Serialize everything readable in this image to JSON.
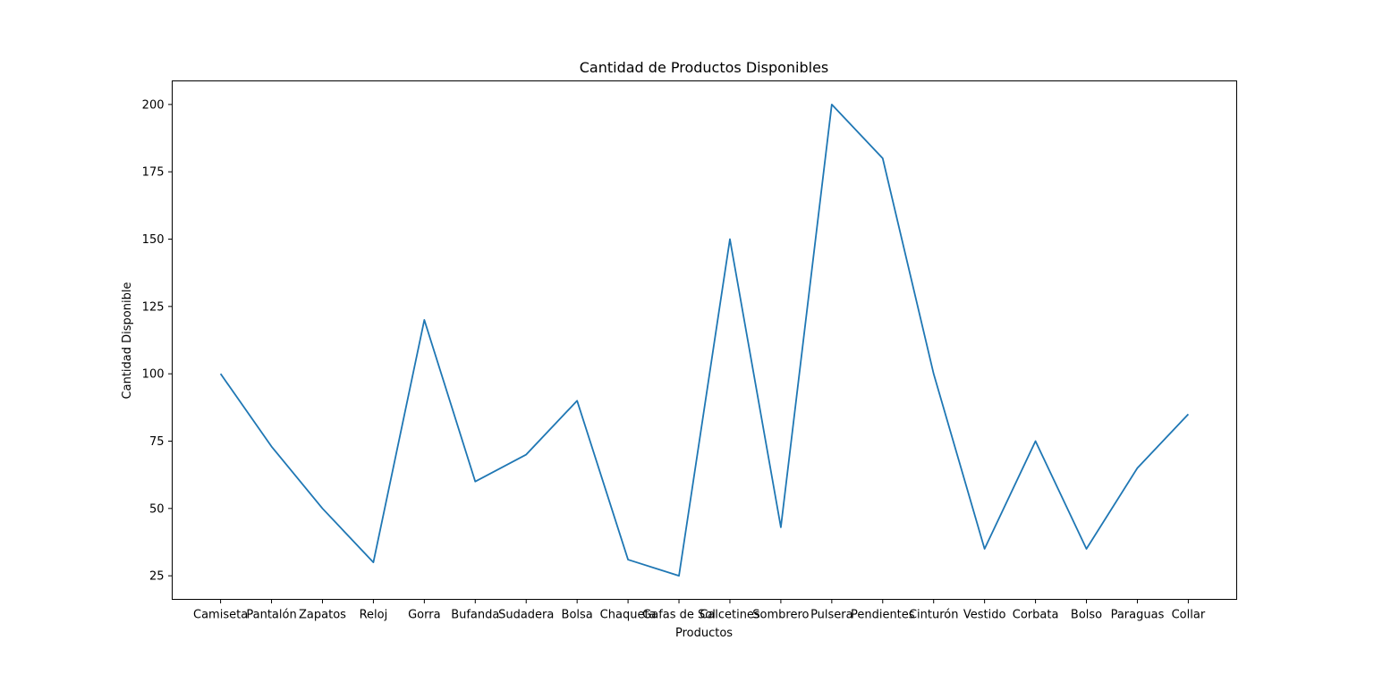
{
  "chart_data": {
    "type": "line",
    "title": "Cantidad de Productos Disponibles",
    "xlabel": "Productos",
    "ylabel": "Cantidad Disponible",
    "categories": [
      "Camiseta",
      "Pantalón",
      "Zapatos",
      "Reloj",
      "Gorra",
      "Bufanda",
      "Sudadera",
      "Bolsa",
      "Chaqueta",
      "Gafas de Sol",
      "Calcetines",
      "Sombrero",
      "Pulsera",
      "Pendientes",
      "Cinturón",
      "Vestido",
      "Corbata",
      "Bolso",
      "Paraguas",
      "Collar"
    ],
    "series": [
      {
        "values": [
          100,
          73,
          50,
          30,
          120,
          60,
          70,
          90,
          31,
          25,
          150,
          43,
          200,
          180,
          100,
          35,
          75,
          35,
          65,
          85
        ]
      }
    ],
    "yticks": [
      25,
      50,
      75,
      100,
      125,
      150,
      175,
      200
    ],
    "ylim": [
      16.25,
      208.75
    ],
    "grid": false,
    "legend": "none",
    "line_color": "#1f77b4"
  }
}
